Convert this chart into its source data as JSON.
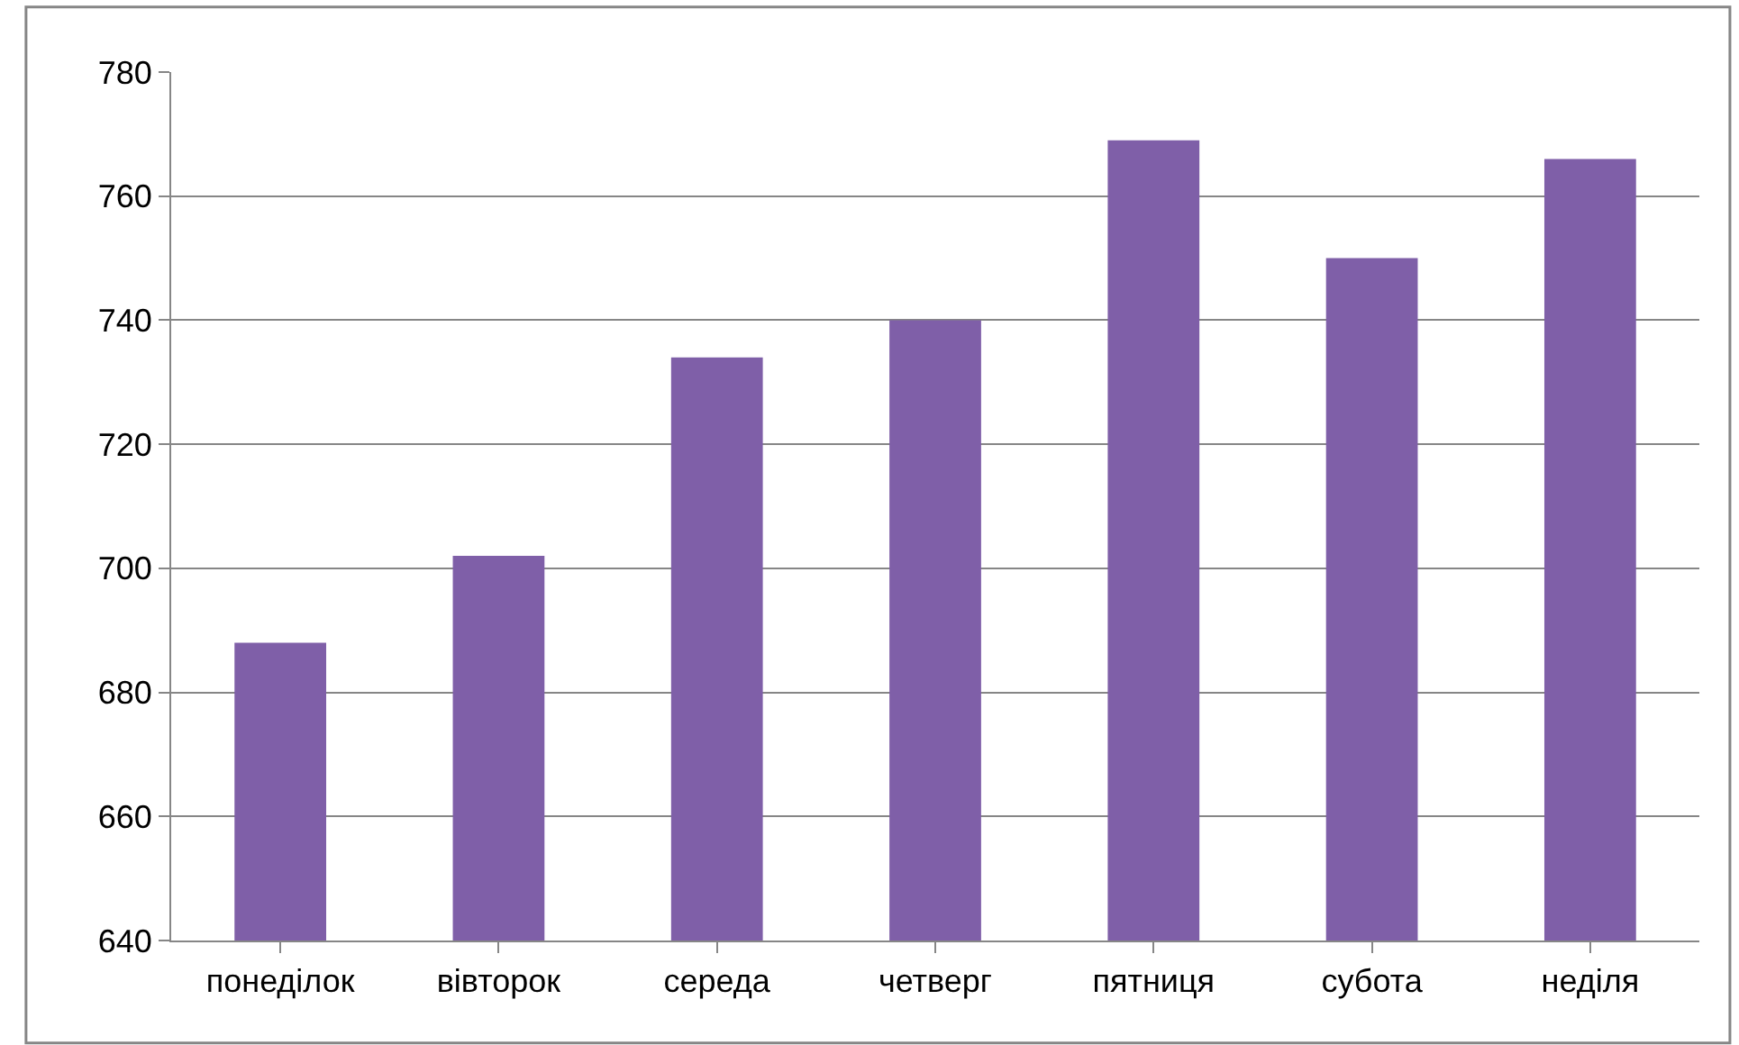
{
  "chart_data": {
    "type": "bar",
    "categories": [
      "понеділок",
      "вівторок",
      "середа",
      "четверг",
      "пятниця",
      "субота",
      "неділя"
    ],
    "values": [
      688,
      702,
      734,
      740,
      769,
      750,
      766
    ],
    "color": "#7f5fa8",
    "ylim": [
      640,
      780
    ],
    "yticks": [
      640,
      660,
      680,
      700,
      720,
      740,
      760,
      780
    ],
    "grid": "y"
  }
}
